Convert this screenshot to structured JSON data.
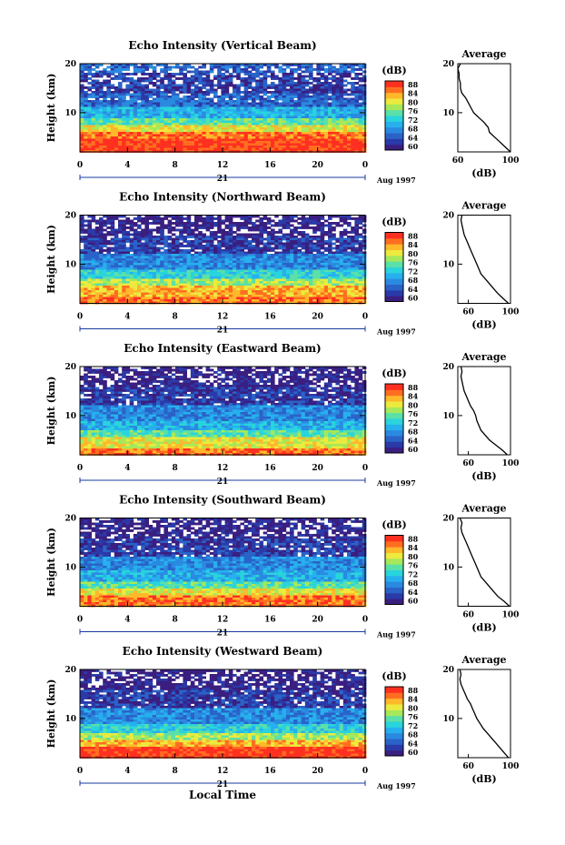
{
  "colors": {
    "scale": [
      "#3a1e80",
      "#2a3aa8",
      "#2a63c8",
      "#2a8ae0",
      "#27b0ee",
      "#29d4dc",
      "#5ae0a8",
      "#a6e85a",
      "#ecea3e",
      "#ffb82a",
      "#ff6e20",
      "#ff3020"
    ],
    "scale_comment_values": [
      60,
      63,
      66,
      69,
      72,
      75,
      78,
      81,
      84,
      87,
      90,
      93
    ]
  },
  "footer": {
    "xlabel": "Local Time"
  },
  "chart_data": [
    {
      "type": "heatmap",
      "title": "Echo Intensity (Vertical Beam)",
      "ylabel": "Height (km)",
      "yticks": [
        "20",
        "10"
      ],
      "ylim": [
        2,
        20
      ],
      "xticks": [
        "0",
        "4",
        "8",
        "12",
        "16",
        "20",
        "0"
      ],
      "xlim": [
        0,
        24
      ],
      "date_label": "21",
      "month_label": "Aug 1997",
      "colorbar_unit": "(dB)",
      "colorbar_ticks": [
        "60",
        "64",
        "68",
        "72",
        "76",
        "80",
        "84",
        "88"
      ],
      "zlim": [
        60,
        96
      ],
      "bands": [
        {
          "height": [
            2,
            4.5
          ],
          "level": 11
        },
        {
          "height": [
            4.5,
            6
          ],
          "level": 10
        },
        {
          "height": [
            6,
            7.5
          ],
          "level": 8
        },
        {
          "height": [
            7.5,
            9
          ],
          "level": 6
        },
        {
          "height": [
            9,
            11
          ],
          "level": 4
        },
        {
          "height": [
            11,
            14
          ],
          "level": 2
        },
        {
          "height": [
            14,
            18
          ],
          "level": 1
        },
        {
          "height": [
            18,
            20
          ],
          "level": 2
        }
      ],
      "average": {
        "title": "Average",
        "xlabel": "(dB)",
        "xticks": [
          "60",
          "100"
        ],
        "yticks": [
          "20",
          "10"
        ],
        "xlim": [
          60,
          100
        ],
        "ylim": [
          2,
          20
        ],
        "heights": [
          2,
          3,
          4,
          5,
          6,
          7,
          8,
          9,
          10,
          11,
          12,
          13,
          14,
          15,
          16,
          17,
          18,
          19,
          20
        ],
        "db": [
          100,
          96,
          92,
          88,
          84,
          83,
          80,
          76,
          72,
          70,
          68,
          66,
          63,
          62,
          62,
          61,
          61,
          60,
          62
        ]
      }
    },
    {
      "type": "heatmap",
      "title": "Echo Intensity (Northward Beam)",
      "ylabel": "Height (km)",
      "yticks": [
        "20",
        "10"
      ],
      "ylim": [
        2,
        20
      ],
      "xticks": [
        "0",
        "4",
        "8",
        "12",
        "16",
        "20",
        "0"
      ],
      "xlim": [
        0,
        24
      ],
      "date_label": "21",
      "month_label": "Aug 1997",
      "colorbar_unit": "(dB)",
      "colorbar_ticks": [
        "60",
        "64",
        "68",
        "72",
        "76",
        "80",
        "84",
        "88"
      ],
      "zlim": [
        60,
        96
      ],
      "bands": [
        {
          "height": [
            2,
            3.5
          ],
          "level": 10
        },
        {
          "height": [
            3.5,
            5.5
          ],
          "level": 9
        },
        {
          "height": [
            5.5,
            7
          ],
          "level": 7
        },
        {
          "height": [
            7,
            9
          ],
          "level": 5
        },
        {
          "height": [
            9,
            12
          ],
          "level": 3
        },
        {
          "height": [
            12,
            16
          ],
          "level": 1
        },
        {
          "height": [
            16,
            20
          ],
          "level": 0
        }
      ],
      "average": {
        "title": "Average",
        "xlabel": "(dB)",
        "xticks": [
          "60",
          "100"
        ],
        "yticks": [
          "20",
          "10"
        ],
        "xlim": [
          50,
          100
        ],
        "ylim": [
          2,
          20
        ],
        "heights": [
          2,
          3,
          4,
          5,
          6,
          7,
          8,
          9,
          10,
          11,
          12,
          13,
          14,
          15,
          16,
          17,
          18,
          19,
          20
        ],
        "db": [
          98,
          93,
          88,
          84,
          80,
          76,
          72,
          70,
          68,
          66,
          64,
          62,
          60,
          58,
          56,
          55,
          54,
          53,
          54
        ]
      }
    },
    {
      "type": "heatmap",
      "title": "Echo Intensity (Eastward Beam)",
      "ylabel": "Height (km)",
      "yticks": [
        "20",
        "10"
      ],
      "ylim": [
        2,
        20
      ],
      "xticks": [
        "0",
        "4",
        "8",
        "12",
        "16",
        "20",
        "0"
      ],
      "xlim": [
        0,
        24
      ],
      "date_label": "21",
      "month_label": "Aug 1997",
      "colorbar_unit": "(dB)",
      "colorbar_ticks": [
        "60",
        "64",
        "68",
        "72",
        "76",
        "80",
        "84",
        "88"
      ],
      "zlim": [
        60,
        96
      ],
      "bands": [
        {
          "height": [
            2,
            3.5
          ],
          "level": 10
        },
        {
          "height": [
            3.5,
            5.5
          ],
          "level": 8
        },
        {
          "height": [
            5.5,
            7
          ],
          "level": 6
        },
        {
          "height": [
            7,
            9
          ],
          "level": 4
        },
        {
          "height": [
            9,
            12
          ],
          "level": 3
        },
        {
          "height": [
            12,
            16
          ],
          "level": 1
        },
        {
          "height": [
            16,
            20
          ],
          "level": 0
        }
      ],
      "average": {
        "title": "Average",
        "xlabel": "(dB)",
        "xticks": [
          "60",
          "100"
        ],
        "yticks": [
          "20",
          "10"
        ],
        "xlim": [
          50,
          100
        ],
        "ylim": [
          2,
          20
        ],
        "heights": [
          2,
          3,
          4,
          5,
          6,
          7,
          8,
          9,
          10,
          11,
          12,
          13,
          14,
          15,
          16,
          17,
          18,
          19,
          20
        ],
        "db": [
          97,
          92,
          86,
          80,
          76,
          72,
          70,
          68,
          67,
          65,
          62,
          60,
          58,
          56,
          55,
          54,
          53,
          54,
          53
        ]
      }
    },
    {
      "type": "heatmap",
      "title": "Echo Intensity (Southward Beam)",
      "ylabel": "Height (km)",
      "yticks": [
        "20",
        "10"
      ],
      "ylim": [
        2,
        20
      ],
      "xticks": [
        "0",
        "4",
        "8",
        "12",
        "16",
        "20",
        "0"
      ],
      "xlim": [
        0,
        24
      ],
      "date_label": "21",
      "month_label": "Aug 1997",
      "colorbar_unit": "(dB)",
      "colorbar_ticks": [
        "60",
        "64",
        "68",
        "72",
        "76",
        "80",
        "84",
        "88"
      ],
      "zlim": [
        60,
        96
      ],
      "bands": [
        {
          "height": [
            2,
            4
          ],
          "level": 10
        },
        {
          "height": [
            4,
            5.5
          ],
          "level": 8
        },
        {
          "height": [
            5.5,
            7
          ],
          "level": 6
        },
        {
          "height": [
            7,
            9.5
          ],
          "level": 4
        },
        {
          "height": [
            9.5,
            12
          ],
          "level": 3
        },
        {
          "height": [
            12,
            16
          ],
          "level": 1
        },
        {
          "height": [
            16,
            20
          ],
          "level": 0
        }
      ],
      "average": {
        "title": "Average",
        "xlabel": "(dB)",
        "xticks": [
          "60",
          "100"
        ],
        "yticks": [
          "20",
          "10"
        ],
        "xlim": [
          50,
          100
        ],
        "ylim": [
          2,
          20
        ],
        "heights": [
          2,
          3,
          4,
          5,
          6,
          7,
          8,
          9,
          10,
          11,
          12,
          13,
          14,
          15,
          16,
          17,
          18,
          19,
          20
        ],
        "db": [
          99,
          94,
          88,
          84,
          80,
          76,
          72,
          70,
          68,
          66,
          64,
          62,
          60,
          58,
          56,
          54,
          53,
          54,
          52
        ]
      }
    },
    {
      "type": "heatmap",
      "title": "Echo Intensity (Westward Beam)",
      "ylabel": "Height (km)",
      "yticks": [
        "20",
        "10"
      ],
      "ylim": [
        2,
        20
      ],
      "xticks": [
        "0",
        "4",
        "8",
        "12",
        "16",
        "20",
        "0"
      ],
      "xlim": [
        0,
        24
      ],
      "date_label": "21",
      "month_label": "Aug 1997",
      "colorbar_unit": "(dB)",
      "colorbar_ticks": [
        "60",
        "64",
        "68",
        "72",
        "76",
        "80",
        "84",
        "88"
      ],
      "zlim": [
        60,
        96
      ],
      "bands": [
        {
          "height": [
            2,
            4
          ],
          "level": 11
        },
        {
          "height": [
            4,
            5.5
          ],
          "level": 9
        },
        {
          "height": [
            5.5,
            7
          ],
          "level": 7
        },
        {
          "height": [
            7,
            9
          ],
          "level": 5
        },
        {
          "height": [
            9,
            12
          ],
          "level": 3
        },
        {
          "height": [
            12,
            16
          ],
          "level": 1
        },
        {
          "height": [
            16,
            20
          ],
          "level": 0
        }
      ],
      "average": {
        "title": "Average",
        "xlabel": "(dB)",
        "xticks": [
          "60",
          "100"
        ],
        "yticks": [
          "20",
          "10"
        ],
        "xlim": [
          50,
          100
        ],
        "ylim": [
          2,
          20
        ],
        "heights": [
          2,
          3,
          4,
          5,
          6,
          7,
          8,
          9,
          10,
          11,
          12,
          13,
          14,
          15,
          16,
          17,
          18,
          19,
          20
        ],
        "db": [
          98,
          94,
          90,
          86,
          82,
          78,
          74,
          71,
          68,
          66,
          64,
          62,
          59,
          57,
          55,
          53,
          52,
          53,
          52
        ]
      }
    }
  ]
}
